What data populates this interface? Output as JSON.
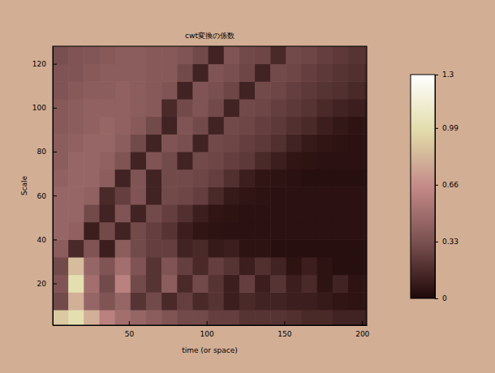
{
  "chart_data": {
    "type": "heatmap",
    "title": "cwt変換の係数",
    "x_label": "time (or space)",
    "y_label": "Scale",
    "xlim": [
      1,
      203
    ],
    "ylim": [
      1,
      128
    ],
    "xticks": [
      50,
      100,
      150,
      200
    ],
    "yticks": [
      20,
      40,
      60,
      80,
      100,
      120
    ],
    "zlim": [
      0,
      1.3
    ],
    "zticks": [
      0,
      0.33,
      0.66,
      0.99,
      1.3
    ],
    "x": [
      6,
      16,
      26,
      36,
      46,
      56,
      66,
      76,
      86,
      96,
      106,
      116,
      126,
      136,
      146,
      156,
      166,
      176,
      186,
      196,
      206
    ],
    "y": [
      4,
      12,
      20,
      28,
      36,
      44,
      52,
      60,
      68,
      76,
      84,
      92,
      100,
      108,
      116,
      124
    ],
    "values": [
      [
        0.9,
        1.0,
        0.8,
        0.6,
        0.5,
        0.45,
        0.4,
        0.35,
        0.3,
        0.3,
        0.25,
        0.25,
        0.2,
        0.2,
        0.2,
        0.18,
        0.15,
        0.15,
        0.12,
        0.12,
        0.1
      ],
      [
        0.3,
        0.8,
        0.45,
        0.35,
        0.45,
        0.2,
        0.3,
        0.15,
        0.25,
        0.15,
        0.2,
        0.1,
        0.15,
        0.12,
        0.12,
        0.1,
        0.1,
        0.08,
        0.06,
        0.05,
        0.05
      ],
      [
        0.35,
        1.0,
        0.5,
        0.3,
        0.6,
        0.3,
        0.2,
        0.4,
        0.15,
        0.3,
        0.2,
        0.1,
        0.25,
        0.1,
        0.2,
        0.1,
        0.15,
        0.05,
        0.12,
        0.05,
        0.05
      ],
      [
        0.3,
        0.85,
        0.45,
        0.35,
        0.5,
        0.35,
        0.2,
        0.35,
        0.25,
        0.15,
        0.25,
        0.2,
        0.1,
        0.18,
        0.12,
        0.05,
        0.1,
        0.05,
        0.03,
        0.03,
        0.03
      ],
      [
        0.4,
        0.15,
        0.35,
        0.1,
        0.4,
        0.3,
        0.25,
        0.25,
        0.12,
        0.15,
        0.08,
        0.1,
        0.05,
        0.05,
        0.03,
        0.03,
        0.03,
        0.03,
        0.03,
        0.03,
        0.03
      ],
      [
        0.45,
        0.42,
        0.1,
        0.3,
        0.12,
        0.3,
        0.25,
        0.2,
        0.1,
        0.06,
        0.05,
        0.04,
        0.04,
        0.04,
        0.04,
        0.04,
        0.04,
        0.04,
        0.04,
        0.04,
        0.04
      ],
      [
        0.45,
        0.45,
        0.3,
        0.12,
        0.35,
        0.12,
        0.3,
        0.25,
        0.18,
        0.1,
        0.06,
        0.05,
        0.04,
        0.04,
        0.04,
        0.04,
        0.04,
        0.04,
        0.04,
        0.04,
        0.04
      ],
      [
        0.45,
        0.45,
        0.42,
        0.15,
        0.25,
        0.35,
        0.12,
        0.3,
        0.28,
        0.25,
        0.15,
        0.08,
        0.06,
        0.05,
        0.04,
        0.04,
        0.04,
        0.04,
        0.04,
        0.04,
        0.04
      ],
      [
        0.42,
        0.45,
        0.45,
        0.4,
        0.12,
        0.35,
        0.12,
        0.3,
        0.3,
        0.28,
        0.25,
        0.18,
        0.1,
        0.06,
        0.05,
        0.04,
        0.03,
        0.03,
        0.03,
        0.03,
        0.03
      ],
      [
        0.4,
        0.45,
        0.45,
        0.42,
        0.35,
        0.12,
        0.35,
        0.3,
        0.12,
        0.3,
        0.28,
        0.25,
        0.22,
        0.15,
        0.1,
        0.06,
        0.05,
        0.04,
        0.04,
        0.04,
        0.04
      ],
      [
        0.4,
        0.42,
        0.45,
        0.45,
        0.4,
        0.3,
        0.12,
        0.35,
        0.32,
        0.12,
        0.3,
        0.28,
        0.25,
        0.22,
        0.18,
        0.12,
        0.08,
        0.06,
        0.05,
        0.04,
        0.04
      ],
      [
        0.38,
        0.4,
        0.42,
        0.45,
        0.42,
        0.38,
        0.3,
        0.12,
        0.35,
        0.3,
        0.12,
        0.3,
        0.28,
        0.25,
        0.22,
        0.18,
        0.15,
        0.1,
        0.07,
        0.05,
        0.05
      ],
      [
        0.38,
        0.4,
        0.42,
        0.42,
        0.42,
        0.4,
        0.38,
        0.15,
        0.3,
        0.35,
        0.3,
        0.12,
        0.3,
        0.28,
        0.25,
        0.22,
        0.2,
        0.15,
        0.12,
        0.1,
        0.08
      ],
      [
        0.35,
        0.38,
        0.4,
        0.4,
        0.42,
        0.4,
        0.38,
        0.35,
        0.12,
        0.35,
        0.32,
        0.28,
        0.12,
        0.3,
        0.28,
        0.25,
        0.22,
        0.2,
        0.18,
        0.15,
        0.12
      ],
      [
        0.35,
        0.35,
        0.38,
        0.4,
        0.4,
        0.4,
        0.38,
        0.38,
        0.3,
        0.12,
        0.35,
        0.32,
        0.28,
        0.12,
        0.3,
        0.28,
        0.25,
        0.22,
        0.2,
        0.18,
        0.15
      ],
      [
        0.32,
        0.35,
        0.36,
        0.38,
        0.4,
        0.4,
        0.38,
        0.38,
        0.35,
        0.3,
        0.12,
        0.35,
        0.3,
        0.28,
        0.15,
        0.3,
        0.28,
        0.25,
        0.22,
        0.2,
        0.18
      ]
    ]
  }
}
